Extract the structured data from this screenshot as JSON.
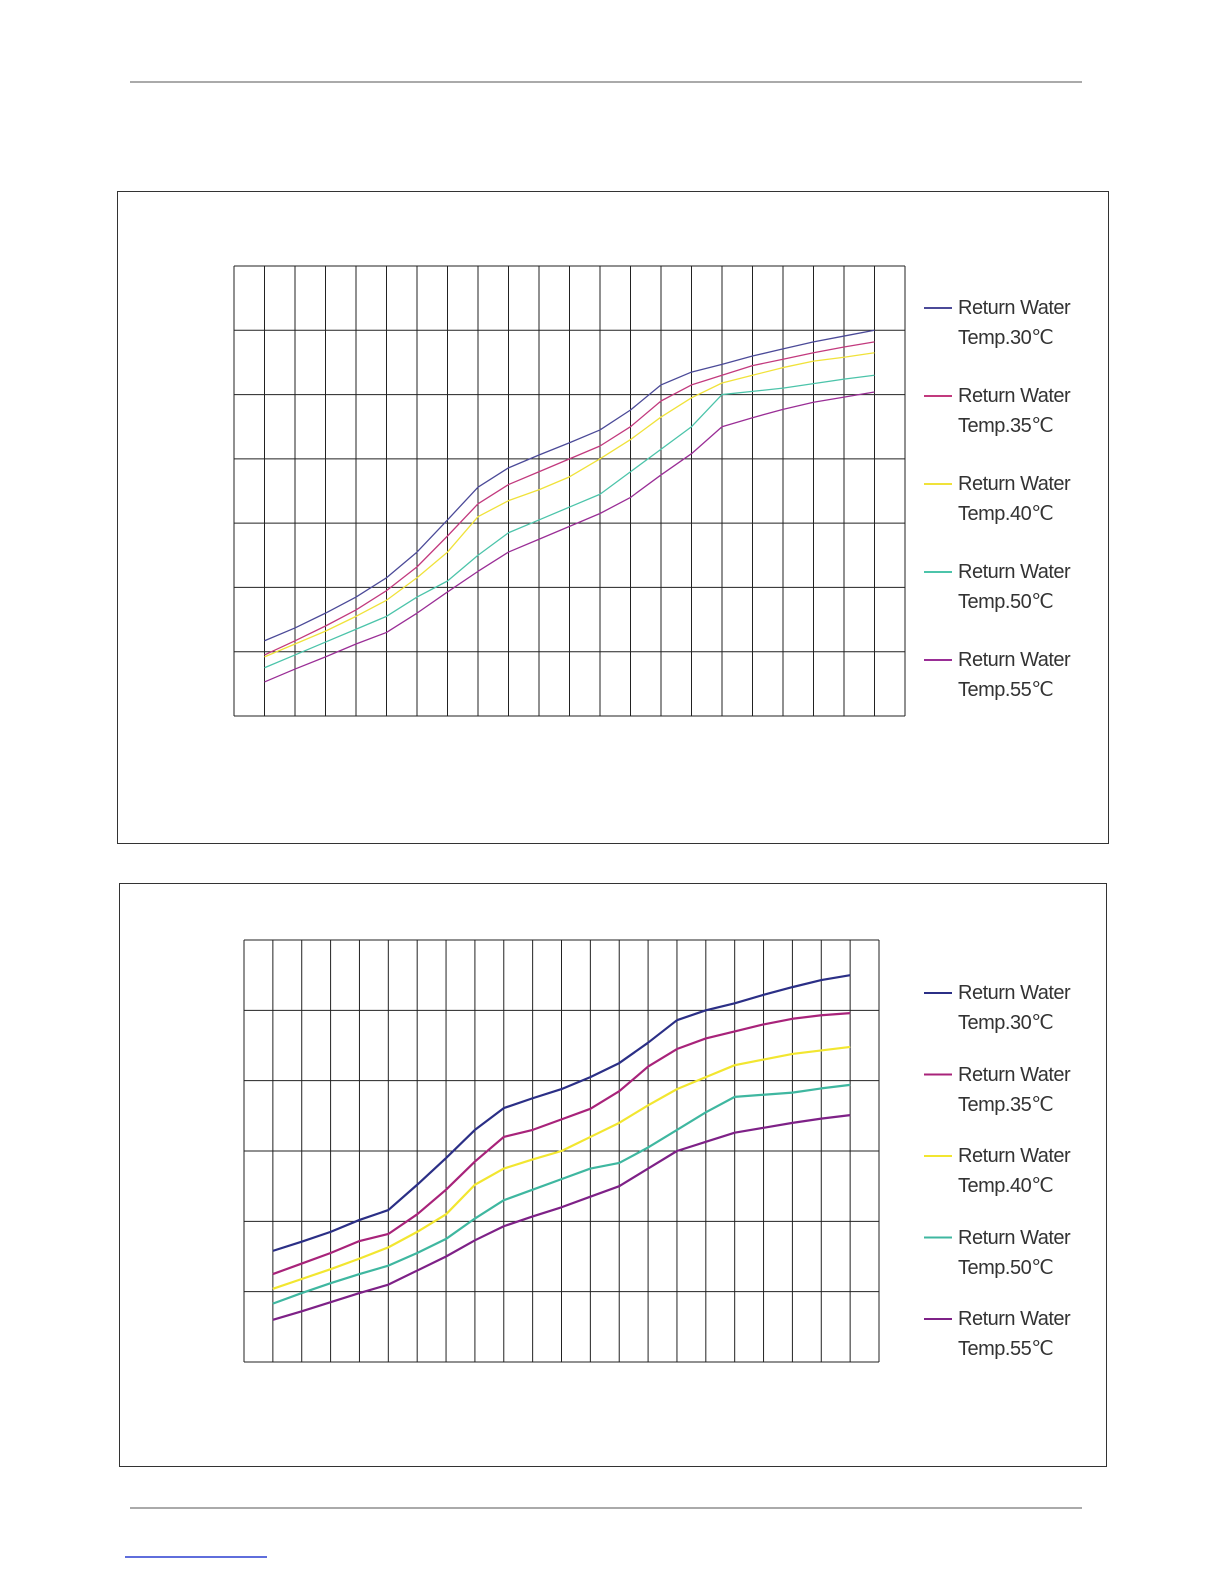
{
  "chart_data": [
    {
      "type": "line",
      "x": [
        1,
        2,
        3,
        4,
        5,
        6,
        7,
        8,
        9,
        10,
        11,
        12,
        13,
        14,
        15,
        16,
        17,
        18,
        19,
        20,
        21
      ],
      "xlim": [
        0,
        22
      ],
      "xticks": [
        0,
        1,
        2,
        3,
        4,
        5,
        6,
        7,
        8,
        9,
        10,
        11,
        12,
        13,
        14,
        15,
        16,
        17,
        18,
        19,
        20,
        21,
        22
      ],
      "ylim": [
        0,
        7
      ],
      "yticks": [
        0,
        1,
        2,
        3,
        4,
        5,
        6,
        7
      ],
      "grid": true,
      "legend": "right",
      "series": [
        {
          "name": "Return Water Temp.30℃",
          "color": "#4b4a98",
          "values": [
            1.17,
            1.37,
            1.6,
            1.85,
            2.15,
            2.55,
            3.05,
            3.56,
            3.86,
            4.06,
            4.25,
            4.45,
            4.76,
            5.15,
            5.35,
            5.47,
            5.6,
            5.71,
            5.82,
            5.91,
            6.0
          ]
        },
        {
          "name": "Return Water Temp.35℃",
          "color": "#c23a7e",
          "values": [
            0.95,
            1.17,
            1.4,
            1.65,
            1.95,
            2.32,
            2.8,
            3.3,
            3.6,
            3.8,
            4.0,
            4.2,
            4.5,
            4.9,
            5.15,
            5.3,
            5.45,
            5.55,
            5.65,
            5.74,
            5.82
          ]
        },
        {
          "name": "Return Water Temp.40℃",
          "color": "#f0e23a",
          "values": [
            0.92,
            1.12,
            1.32,
            1.55,
            1.8,
            2.15,
            2.55,
            3.1,
            3.35,
            3.52,
            3.72,
            4.0,
            4.3,
            4.65,
            4.95,
            5.18,
            5.3,
            5.42,
            5.52,
            5.58,
            5.65
          ]
        },
        {
          "name": "Return Water Temp.50℃",
          "color": "#4cc4aa",
          "values": [
            0.75,
            0.95,
            1.15,
            1.35,
            1.55,
            1.85,
            2.1,
            2.5,
            2.85,
            3.05,
            3.25,
            3.45,
            3.8,
            4.15,
            4.5,
            5.0,
            5.05,
            5.1,
            5.17,
            5.24,
            5.3
          ]
        },
        {
          "name": "Return Water Temp.55℃",
          "color": "#9a2e96",
          "values": [
            0.53,
            0.73,
            0.92,
            1.12,
            1.3,
            1.6,
            1.93,
            2.25,
            2.55,
            2.75,
            2.95,
            3.15,
            3.4,
            3.75,
            4.08,
            4.5,
            4.64,
            4.77,
            4.88,
            4.96,
            5.04
          ]
        }
      ]
    },
    {
      "type": "line",
      "x": [
        1,
        2,
        3,
        4,
        5,
        6,
        7,
        8,
        9,
        10,
        11,
        12,
        13,
        14,
        15,
        16,
        17,
        18,
        19,
        20,
        21
      ],
      "xlim": [
        0,
        22
      ],
      "xticks": [
        0,
        1,
        2,
        3,
        4,
        5,
        6,
        7,
        8,
        9,
        10,
        11,
        12,
        13,
        14,
        15,
        16,
        17,
        18,
        19,
        20,
        21,
        22
      ],
      "ylim": [
        0,
        6
      ],
      "yticks": [
        0,
        1,
        2,
        3,
        4,
        5,
        6
      ],
      "grid": true,
      "legend": "right",
      "series": [
        {
          "name": "Return Water Temp.30℃",
          "color": "#2b2f86",
          "values": [
            1.58,
            1.71,
            1.85,
            2.02,
            2.16,
            2.52,
            2.9,
            3.3,
            3.61,
            3.75,
            3.88,
            4.05,
            4.25,
            4.54,
            4.86,
            5.0,
            5.1,
            5.22,
            5.33,
            5.43,
            5.5
          ]
        },
        {
          "name": "Return Water Temp.35℃",
          "color": "#a8237a",
          "values": [
            1.25,
            1.4,
            1.55,
            1.72,
            1.82,
            2.1,
            2.45,
            2.85,
            3.2,
            3.3,
            3.45,
            3.6,
            3.85,
            4.2,
            4.45,
            4.6,
            4.7,
            4.8,
            4.88,
            4.93,
            4.96
          ]
        },
        {
          "name": "Return Water Temp.40℃",
          "color": "#f2e630",
          "values": [
            1.04,
            1.18,
            1.32,
            1.47,
            1.63,
            1.85,
            2.1,
            2.52,
            2.75,
            2.88,
            3.0,
            3.2,
            3.4,
            3.65,
            3.88,
            4.05,
            4.22,
            4.3,
            4.38,
            4.43,
            4.48
          ]
        },
        {
          "name": "Return Water Temp.50℃",
          "color": "#3fb7a0",
          "values": [
            0.83,
            0.98,
            1.12,
            1.25,
            1.37,
            1.55,
            1.75,
            2.04,
            2.3,
            2.45,
            2.6,
            2.75,
            2.83,
            3.05,
            3.3,
            3.55,
            3.77,
            3.8,
            3.83,
            3.89,
            3.94
          ]
        },
        {
          "name": "Return Water Temp.55℃",
          "color": "#7e2187",
          "values": [
            0.6,
            0.72,
            0.85,
            0.98,
            1.1,
            1.3,
            1.5,
            1.73,
            1.93,
            2.07,
            2.2,
            2.35,
            2.5,
            2.75,
            3.0,
            3.13,
            3.26,
            3.33,
            3.4,
            3.46,
            3.51
          ]
        }
      ]
    }
  ]
}
